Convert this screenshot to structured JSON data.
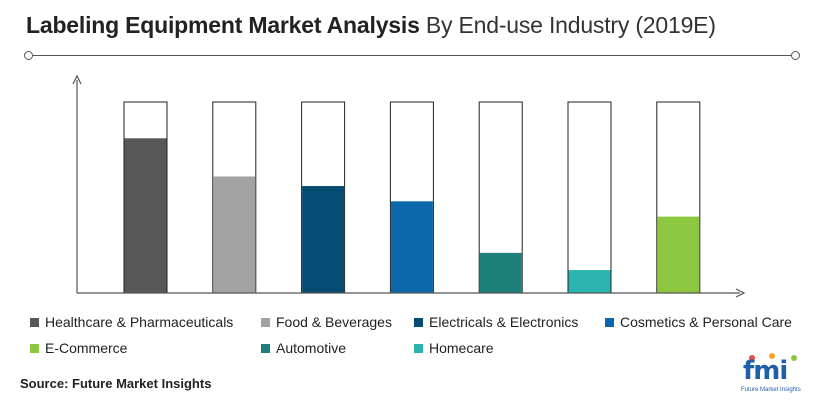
{
  "title": {
    "main": "Labeling Equipment Market Analysis",
    "sub": "By End-use Industry (2019E)"
  },
  "source": "Source: Future Market Insights",
  "logo": {
    "text": "fmi",
    "subtext": "Future Market Insights"
  },
  "chart_data": {
    "type": "bar",
    "title": "Labeling Equipment Market Analysis By End-use Industry (2019E)",
    "xlabel": "",
    "ylabel": "",
    "ylim": [
      0,
      100
    ],
    "grid": false,
    "legend_position": "bottom",
    "categories": [
      "Healthcare & Pharmaceuticals",
      "Food & Beverages",
      "Electricals & Electronics",
      "Cosmetics & Personal Care",
      "Automotive",
      "Homecare",
      "E-Commerce"
    ],
    "values": [
      81,
      61,
      56,
      48,
      21,
      12,
      40
    ],
    "total": [
      100,
      100,
      100,
      100,
      100,
      100,
      100
    ],
    "colors": [
      "#575757",
      "#a3a3a3",
      "#054c72",
      "#0c67ab",
      "#1d7f7a",
      "#2db3ad",
      "#8dc63f"
    ]
  },
  "legend": [
    {
      "label": "Healthcare & Pharmaceuticals",
      "color": "#575757"
    },
    {
      "label": "Food & Beverages",
      "color": "#a3a3a3"
    },
    {
      "label": "Electricals & Electronics",
      "color": "#054c72"
    },
    {
      "label": "Cosmetics & Personal Care",
      "color": "#0c67ab"
    },
    {
      "label": "E-Commerce",
      "color": "#8dc63f"
    },
    {
      "label": "Automotive",
      "color": "#1d7f7a"
    },
    {
      "label": "Homecare",
      "color": "#2db3ad"
    }
  ]
}
